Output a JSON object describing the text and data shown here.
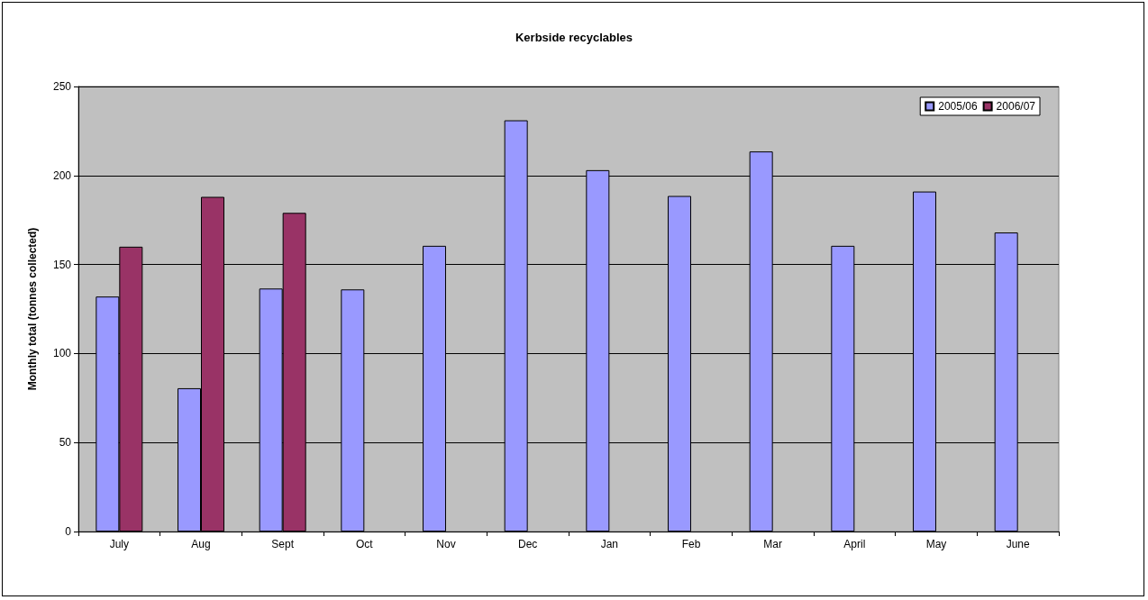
{
  "chart_data": {
    "type": "bar",
    "title": "Kerbside recyclables",
    "ylabel": "Monthly total (tonnes collected)",
    "categories": [
      "July",
      "Aug",
      "Sept",
      "Oct",
      "Nov",
      "Dec",
      "Jan",
      "Feb",
      "Mar",
      "April",
      "May",
      "June"
    ],
    "series": [
      {
        "name": "2005/06",
        "color": "#9999ff",
        "values": [
          132,
          80.5,
          136.5,
          136,
          160.5,
          231,
          203,
          188.5,
          213.5,
          160.5,
          191,
          168
        ]
      },
      {
        "name": "2006/07",
        "color": "#993366",
        "values": [
          160,
          188,
          179,
          null,
          null,
          null,
          null,
          null,
          null,
          null,
          null,
          null
        ]
      }
    ],
    "ylim": [
      0,
      250
    ],
    "yticks": [
      0,
      50,
      100,
      150,
      200,
      250
    ],
    "grid": "y",
    "legend": "top right"
  }
}
